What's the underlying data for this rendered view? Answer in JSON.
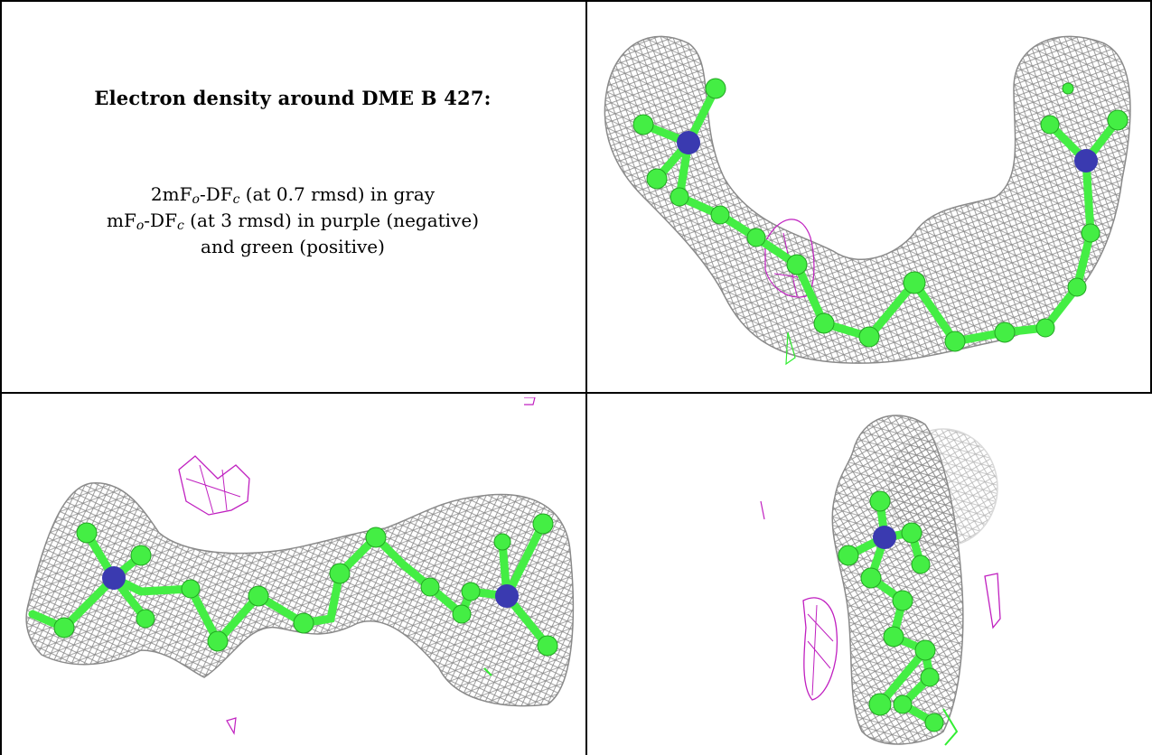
{
  "caption": {
    "title": "Electron density around DME B 427:",
    "line1": {
      "prefix": "2mF",
      "sub1": "o",
      "mid": "-DF",
      "sub2": "c",
      "suffix": " (at 0.7 rmsd) in gray"
    },
    "line2": {
      "prefix": "mF",
      "sub1": "o",
      "mid": "-DF",
      "sub2": "c",
      "suffix": " (at 3 rmsd) in purple (negative)"
    },
    "line3": "and green (positive)"
  },
  "colors": {
    "mesh_gray": "#8a8a8a",
    "negative_purple": "#c020c0",
    "positive_green": "#33ee33",
    "carbon_green": "#44ee44",
    "nitrogen_blue": "#3a3ab0"
  },
  "panels": [
    {
      "name": "view-top-right"
    },
    {
      "name": "view-bottom-left"
    },
    {
      "name": "view-bottom-right"
    }
  ]
}
